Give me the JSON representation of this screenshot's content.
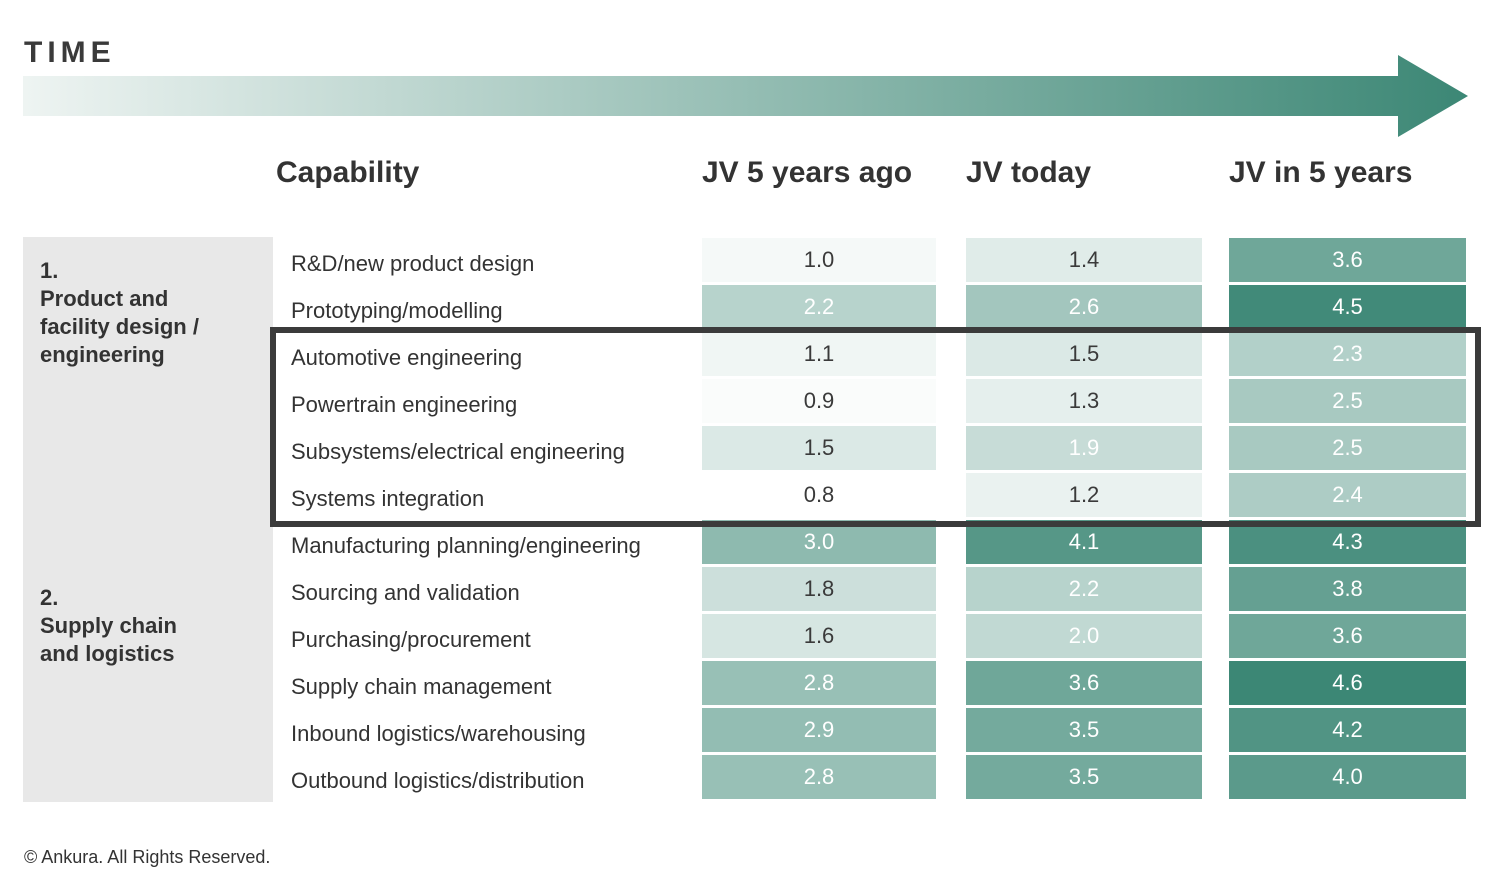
{
  "header": {
    "time_label": "TIME"
  },
  "colors": {
    "arrow_start": "#eef4f2",
    "arrow_end": "#3c8775",
    "group_bg": "#e8e8e8",
    "highlight_border": "#3b3b3b"
  },
  "chart_data": {
    "type": "table",
    "columns": [
      "Capability",
      "JV 5 years ago",
      "JV today",
      "JV in 5 years"
    ],
    "groups": [
      {
        "number": "1.",
        "name_lines": [
          "Product and",
          "facility design /",
          "engineering"
        ],
        "first_row": 0,
        "row_count": 7
      },
      {
        "number": "2.",
        "name_lines": [
          "Supply chain",
          "and logistics"
        ],
        "first_row": 7,
        "row_count": 5
      }
    ],
    "rows": [
      {
        "capability": "R&D/new product design",
        "values": [
          1.0,
          1.4,
          3.6
        ]
      },
      {
        "capability": "Prototyping/modelling",
        "values": [
          2.2,
          2.6,
          4.5
        ]
      },
      {
        "capability": "Automotive engineering",
        "values": [
          1.1,
          1.5,
          2.3
        ]
      },
      {
        "capability": "Powertrain engineering",
        "values": [
          0.9,
          1.3,
          2.5
        ]
      },
      {
        "capability": "Subsystems/electrical engineering",
        "values": [
          1.5,
          1.9,
          2.5
        ]
      },
      {
        "capability": "Systems integration",
        "values": [
          0.8,
          1.2,
          2.4
        ]
      },
      {
        "capability": "Manufacturing planning/engineering",
        "values": [
          3.0,
          4.1,
          4.3
        ]
      },
      {
        "capability": "Sourcing and validation",
        "values": [
          1.8,
          2.2,
          3.8
        ]
      },
      {
        "capability": "Purchasing/procurement",
        "values": [
          1.6,
          2.0,
          3.6
        ]
      },
      {
        "capability": "Supply chain management",
        "values": [
          2.8,
          3.6,
          4.6
        ]
      },
      {
        "capability": "Inbound logistics/warehousing",
        "values": [
          2.9,
          3.5,
          4.2
        ]
      },
      {
        "capability": "Outbound logistics/distribution",
        "values": [
          2.8,
          3.5,
          4.0
        ]
      }
    ],
    "highlighted_rows": [
      2,
      3,
      4,
      5
    ],
    "color_scale": {
      "min": 0.8,
      "max": 4.6,
      "low_color": "#ffffff",
      "high_color": "#3c8775"
    }
  },
  "footer": {
    "copyright": "© Ankura. All Rights Reserved."
  }
}
